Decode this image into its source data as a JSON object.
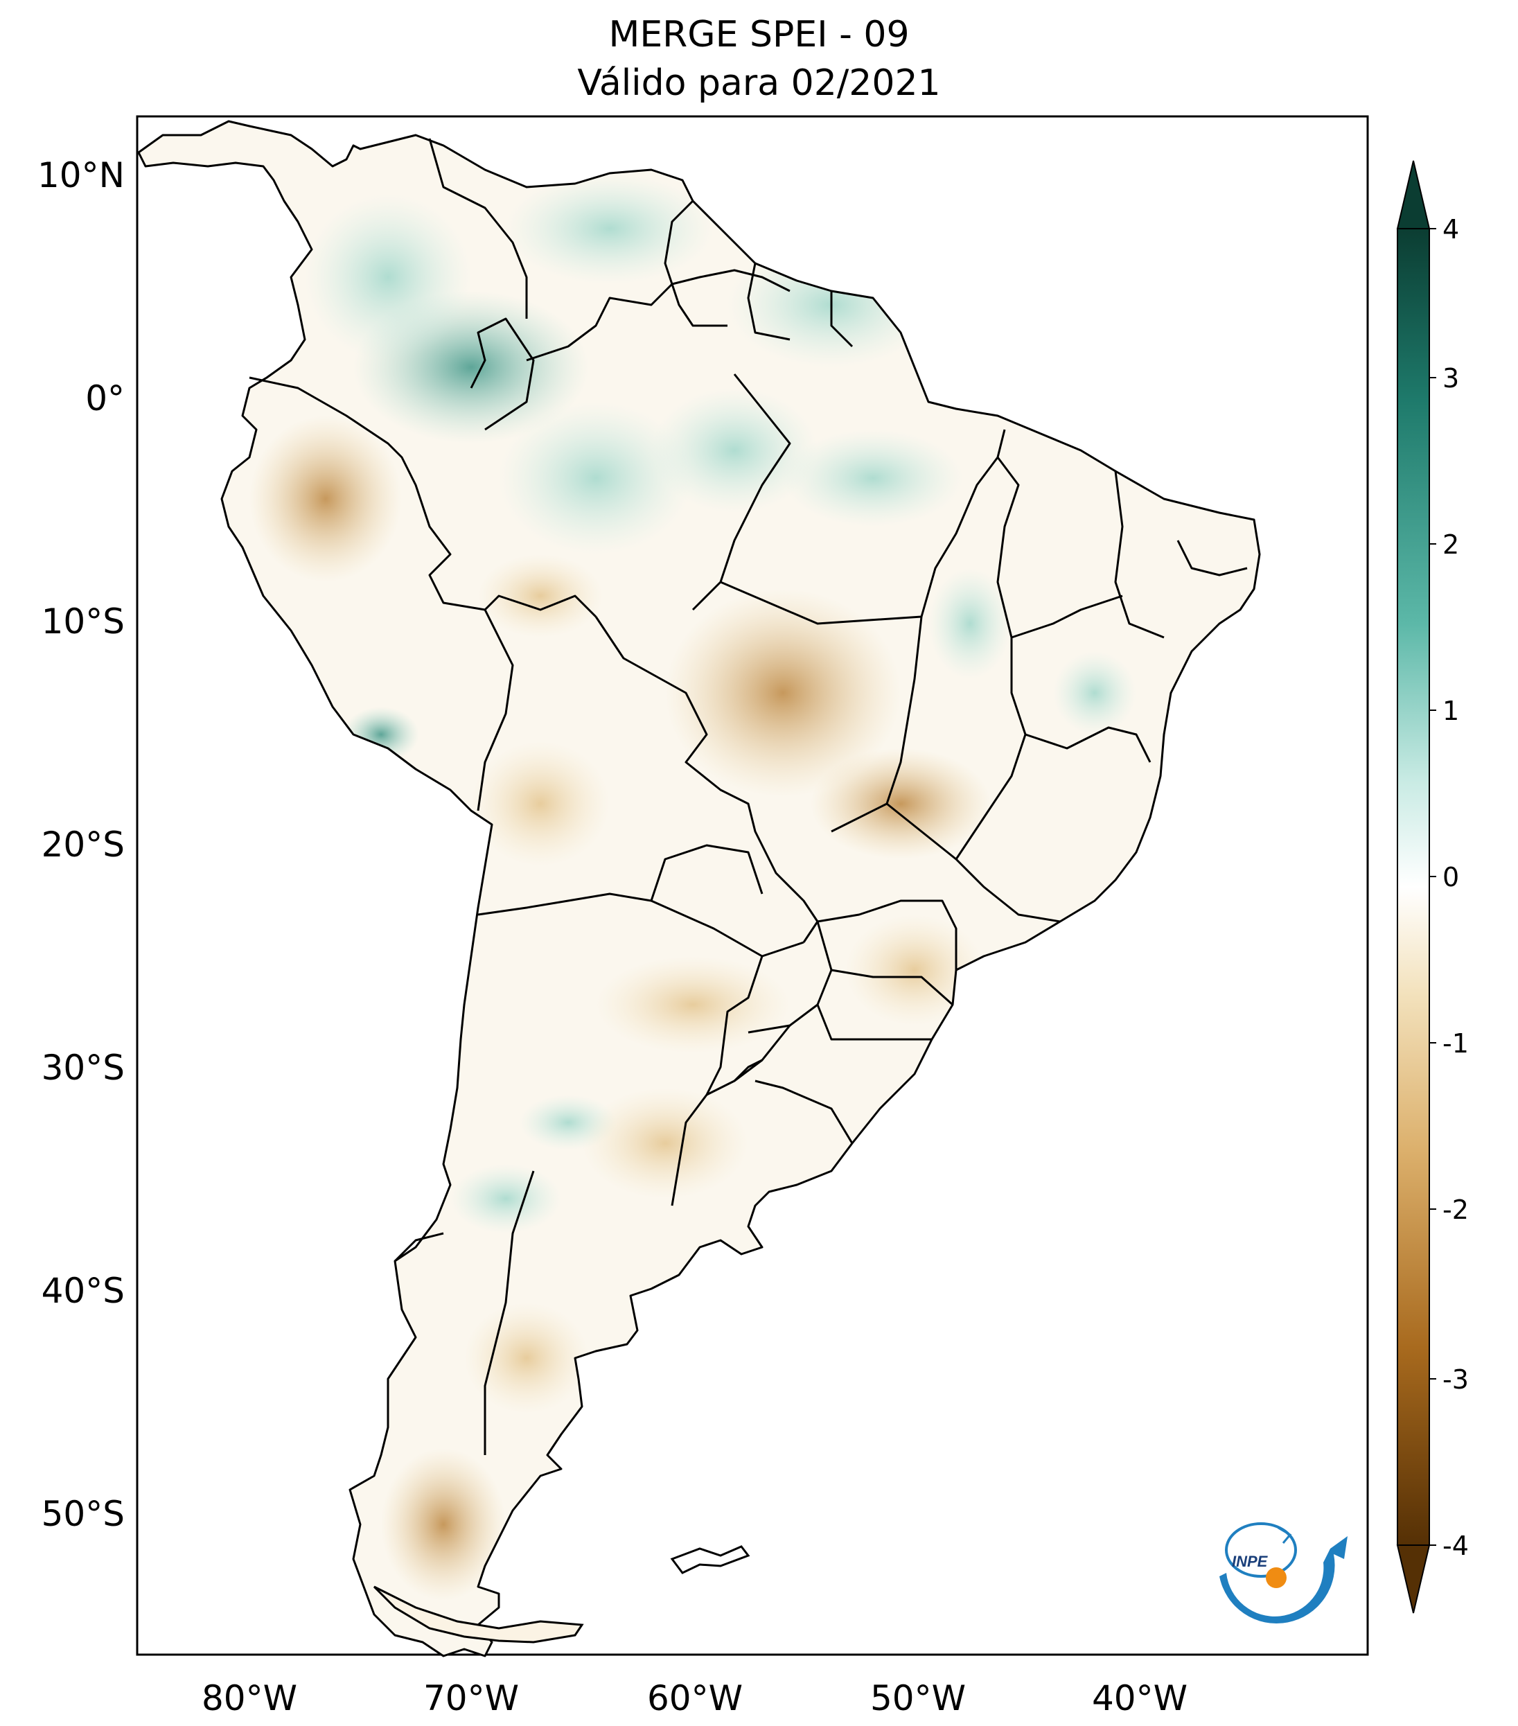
{
  "title": {
    "line1": "MERGE   SPEI - 09",
    "line2": "Válido para 02/2021"
  },
  "map": {
    "region": "South America",
    "lat_ticks": [
      "10°N",
      "0°",
      "10°S",
      "20°S",
      "30°S",
      "40°S",
      "50°S"
    ],
    "lon_ticks": [
      "80°W",
      "70°W",
      "60°W",
      "50°W",
      "40°W"
    ]
  },
  "colorbar": {
    "ticks": [
      "4",
      "3",
      "2",
      "1",
      "0",
      "-1",
      "-2",
      "-3",
      "-4"
    ],
    "colors": {
      "max": "#0b3d32",
      "high": "#1e7a6b",
      "mid_high": "#8fd1c4",
      "zero": "#ffffff",
      "mid_low": "#e6c98f",
      "low": "#a86a1e",
      "min": "#553005"
    }
  },
  "logo": {
    "text": "INPE",
    "icon": "inpe-logo-icon"
  }
}
